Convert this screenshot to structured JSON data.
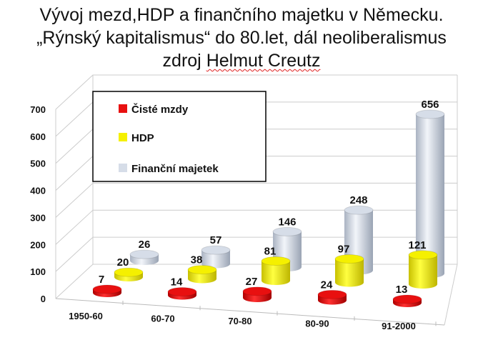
{
  "title": {
    "line1": "Vývoj mezd,HDP a finančního majetku v Německu.",
    "line2": "„Rýnský kapitalismus“ do 80.let, dál neoliberalismus",
    "line3_prefix": "zdroj ",
    "line3_source": "Helmut Creutz"
  },
  "chart_data": {
    "type": "bar",
    "style": "3d-cylinder",
    "categories": [
      "1950-60",
      "60-70",
      "70-80",
      "80-90",
      "91-2000"
    ],
    "series": [
      {
        "name": "Čisté mzdy",
        "color": "#e81010",
        "values": [
          7,
          14,
          27,
          24,
          13
        ]
      },
      {
        "name": "HDP",
        "color": "#f5f000",
        "values": [
          20,
          38,
          81,
          97,
          121
        ]
      },
      {
        "name": "Finanční majetek",
        "color": "#d6dde8",
        "values": [
          26,
          57,
          146,
          248,
          656
        ]
      }
    ],
    "yticks": [
      "0",
      "100",
      "200",
      "300",
      "400",
      "500",
      "600",
      "700"
    ],
    "ylim": [
      0,
      700
    ],
    "grid": true,
    "legend": "top-left",
    "data_labels": true
  }
}
